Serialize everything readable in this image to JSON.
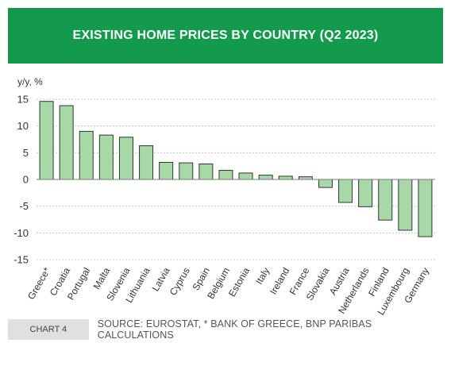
{
  "header": {
    "title": "EXISTING HOME PRICES BY COUNTRY (Q2 2023)"
  },
  "footer": {
    "chart_label": "CHART 4",
    "source": "SOURCE: EUROSTAT, * BANK OF GREECE, BNP PARIBAS CALCULATIONS"
  },
  "colors": {
    "header_bg": "#139a4c",
    "bar_fill": "#a8d8a8",
    "bar_stroke": "#2b3a2b",
    "grid": "#c8c8c8"
  },
  "chart_data": {
    "type": "bar",
    "title": "EXISTING HOME PRICES BY COUNTRY (Q2 2023)",
    "ylabel": "y/y, %",
    "xlabel": "",
    "ylim": [
      -15,
      15
    ],
    "yticks": [
      15,
      10,
      5,
      0,
      -5,
      -10,
      -15
    ],
    "grid": true,
    "categories": [
      "Greece*",
      "Croatia",
      "Portugal",
      "Malta",
      "Slovenia",
      "Lithuania",
      "Latvia",
      "Cyprus",
      "Spain",
      "Belgium",
      "Estonia",
      "Italy",
      "Ireland",
      "France",
      "Slovakia",
      "Austria",
      "Netherlands",
      "Finland",
      "Luxembourg",
      "Germany"
    ],
    "values": [
      14.6,
      13.8,
      9.0,
      8.3,
      7.9,
      6.3,
      3.2,
      3.1,
      2.9,
      1.7,
      1.2,
      0.8,
      0.6,
      0.5,
      -1.5,
      -4.3,
      -5.1,
      -7.6,
      -9.5,
      -10.7
    ]
  }
}
